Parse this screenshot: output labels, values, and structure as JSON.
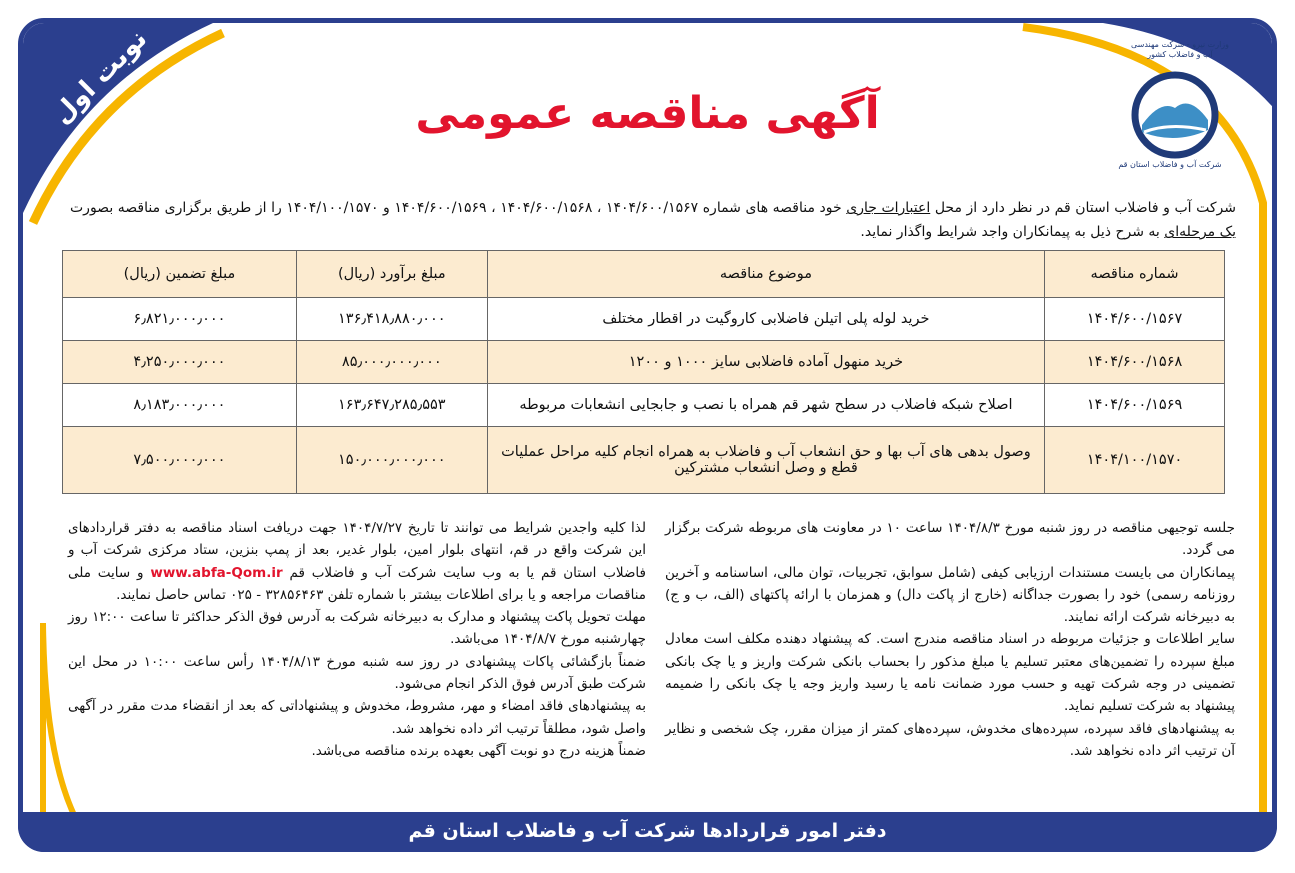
{
  "badge": "نوبت اول",
  "title": "آگهی مناقصه عمومی",
  "logo": {
    "header_text": "وزارت نیرو - شرکت مهندسی آب و فاضلاب کشور",
    "company_text": "شرکت آب و فاضلاب استان قم"
  },
  "intro": {
    "part1": "شرکت آب و فاضلاب استان قم در نظر دارد از محل ",
    "underlined1": "اعتبارات جاری",
    "part2": " خود مناقصه های شماره ۱۴۰۴/۶۰۰/۱۵۶۷ ، ۱۴۰۴/۶۰۰/۱۵۶۸ ، ۱۴۰۴/۶۰۰/۱۵۶۹ و ۱۴۰۴/۱۰۰/۱۵۷۰ را از طریق برگزاری مناقصه بصورت ",
    "underlined2": "یک مرحله‌ای",
    "part3": " به شرح ذیل به پیمانکاران واجد شرایط واگذار نماید."
  },
  "table": {
    "headers": [
      "شماره مناقصه",
      "موضوع مناقصه",
      "مبلغ برآورد (ریال)",
      "مبلغ تضمین (ریال)"
    ],
    "rows": [
      [
        "۱۴۰۴/۶۰۰/۱۵۶۷",
        "خرید لوله پلی اتیلن فاضلابی کاروگیت در اقطار مختلف",
        "۱۳۶٫۴۱۸٫۸۸۰٫۰۰۰",
        "۶٫۸۲۱٫۰۰۰٫۰۰۰"
      ],
      [
        "۱۴۰۴/۶۰۰/۱۵۶۸",
        "خرید منهول آماده فاضلابی سایز ۱۰۰۰ و ۱۲۰۰",
        "۸۵٫۰۰۰٫۰۰۰٫۰۰۰",
        "۴٫۲۵۰٫۰۰۰٫۰۰۰"
      ],
      [
        "۱۴۰۴/۶۰۰/۱۵۶۹",
        "اصلاح شبکه فاضلاب در سطح شهر قم همراه با نصب و جابجایی انشعابات مربوطه",
        "۱۶۳٫۶۴۷٫۲۸۵٫۵۵۳",
        "۸٫۱۸۳٫۰۰۰٫۰۰۰"
      ],
      [
        "۱۴۰۴/۱۰۰/۱۵۷۰",
        "وصول بدهی های آب بها و حق انشعاب آب و فاضلاب به همراه انجام کلیه مراحل عملیات قطع و وصل انشعاب مشترکین",
        "۱۵۰٫۰۰۰٫۰۰۰٫۰۰۰",
        "۷٫۵۰۰٫۰۰۰٫۰۰۰"
      ]
    ]
  },
  "right_column": [
    "جلسه توجیهی مناقصه در روز شنبه مورخ ۱۴۰۴/۸/۳ ساعت ۱۰ در معاونت های مربوطه شرکت برگزار می گردد.",
    "پیمانکاران می بایست مستندات ارزیابی کیفی (شامل سوابق، تجربیات، توان مالی، اساسنامه و آخرین روزنامه رسمی) خود را بصورت جداگانه (خارج از پاکت دال) و همزمان با ارائه پاکتهای (الف، ب و ج) به دبیرخانه شرکت ارائه نمایند.",
    "سایر اطلاعات و جزئیات مربوطه در اسناد مناقصه مندرج است. که پیشنهاد دهنده مکلف است معادل مبلغ سپرده را تضمین‌های معتبر تسلیم یا مبلغ مذکور را بحساب بانکی شرکت واریز و یا چک بانکی تضمینی در وجه شرکت تهیه و حسب مورد ضمانت نامه یا رسید واریز وجه یا چک بانکی را ضمیمه پیشنهاد به شرکت تسلیم نماید.",
    "به پیشنهادهای فاقد سپرده، سپرده‌های مخدوش، سپرده‌های کمتر از میزان مقرر، چک شخصی و نظایر آن ترتیب اثر داده نخواهد شد."
  ],
  "left_column": {
    "p1_before": "لذا کلیه واجدین شرایط می توانند تا تاریخ ۱۴۰۴/۷/۲۷ جهت دریافت اسناد مناقصه به دفتر قراردادهای این شرکت واقع در قم، انتهای بلوار امین، بلوار غدیر، بعد از پمپ بنزین، ستاد مرکزی شرکت آب و فاضلاب استان قم یا به وب سایت شرکت آب و فاضلاب قم ",
    "website": "www.abfa-Qom.ir",
    "p1_after": " و سایت ملی مناقصات مراجعه و یا برای اطلاعات بیشتر با شماره تلفن ۳۲۸۵۶۴۶۳ - ۰۲۵ تماس حاصل نمایند.",
    "paragraphs": [
      "مهلت تحویل پاکت پیشنهاد و مدارک به دبیرخانه شرکت به آدرس فوق الذکر حداکثر تا ساعت ۱۲:۰۰ روز چهارشنبه مورخ ۱۴۰۴/۸/۷ می‌باشد.",
      "ضمناً بازگشائی پاکات پیشنهادی در روز سه شنبه مورخ ۱۴۰۴/۸/۱۳ رأس ساعت ۱۰:۰۰ در محل این شرکت طبق آدرس فوق الذکر انجام می‌شود.",
      "به پیشنهادهای فاقد امضاء و مهر، مشروط، مخدوش و پیشنهاداتی که بعد از انقضاء مدت مقرر در آگهی واصل شود، مطلقاً ترتیب اثر داده نخواهد شد.",
      "ضمناً هزینه درج دو نوبت آگهی بعهده برنده مناقصه می‌باشد."
    ]
  },
  "footer": "دفتر امور قراردادها  شرکت آب و فاضلاب استان قم",
  "colors": {
    "frame_blue": "#2b3f8e",
    "accent_yellow": "#f7b500",
    "title_red": "#e2142d",
    "table_beige": "#fcebd0"
  }
}
